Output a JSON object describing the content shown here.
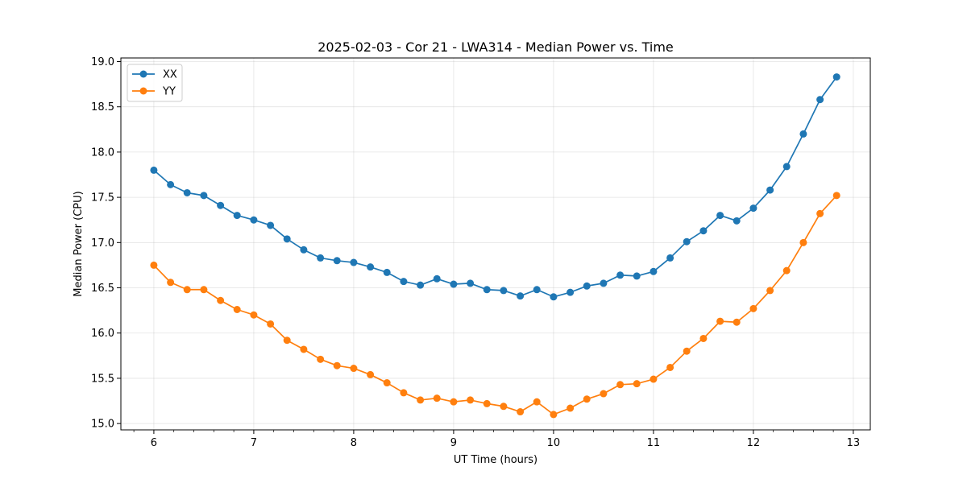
{
  "chart_data": {
    "type": "line",
    "title": "2025-02-03 - Cor 21 - LWA314 - Median Power vs. Time",
    "xlabel": "UT Time (hours)",
    "ylabel": "Median Power (CPU)",
    "xlim": [
      5.67,
      13.17
    ],
    "ylim": [
      14.93,
      19.04
    ],
    "xticks": [
      6,
      7,
      8,
      9,
      10,
      11,
      12,
      13
    ],
    "xtick_labels": [
      "6",
      "7",
      "8",
      "9",
      "10",
      "11",
      "12",
      "13"
    ],
    "yticks": [
      15.0,
      15.5,
      16.0,
      16.5,
      17.0,
      17.5,
      18.0,
      18.5,
      19.0
    ],
    "ytick_labels": [
      "15.0",
      "15.5",
      "16.0",
      "16.5",
      "17.0",
      "17.5",
      "18.0",
      "18.5",
      "19.0"
    ],
    "grid": true,
    "legend_position": "top-left",
    "x": [
      6.0,
      6.167,
      6.333,
      6.5,
      6.667,
      6.833,
      7.0,
      7.167,
      7.333,
      7.5,
      7.667,
      7.833,
      8.0,
      8.167,
      8.333,
      8.5,
      8.667,
      8.833,
      9.0,
      9.167,
      9.333,
      9.5,
      9.667,
      9.833,
      10.0,
      10.167,
      10.333,
      10.5,
      10.667,
      10.833,
      11.0,
      11.167,
      11.333,
      11.5,
      11.667,
      11.833,
      12.0,
      12.167,
      12.333,
      12.5,
      12.667,
      12.833
    ],
    "series": [
      {
        "name": "XX",
        "color": "#1f77b4",
        "values": [
          17.8,
          17.64,
          17.55,
          17.52,
          17.41,
          17.3,
          17.25,
          17.19,
          17.04,
          16.92,
          16.83,
          16.8,
          16.78,
          16.73,
          16.67,
          16.57,
          16.53,
          16.6,
          16.54,
          16.55,
          16.48,
          16.47,
          16.41,
          16.48,
          16.4,
          16.45,
          16.52,
          16.55,
          16.64,
          16.63,
          16.68,
          16.83,
          17.01,
          17.13,
          17.3,
          17.24,
          17.38,
          17.58,
          17.84,
          18.2,
          18.58,
          18.83
        ]
      },
      {
        "name": "YY",
        "color": "#ff7f0e",
        "values": [
          16.75,
          16.56,
          16.48,
          16.48,
          16.36,
          16.26,
          16.2,
          16.1,
          15.92,
          15.82,
          15.71,
          15.64,
          15.61,
          15.54,
          15.45,
          15.34,
          15.26,
          15.28,
          15.24,
          15.26,
          15.22,
          15.19,
          15.13,
          15.24,
          15.1,
          15.17,
          15.27,
          15.33,
          15.43,
          15.44,
          15.49,
          15.62,
          15.8,
          15.94,
          16.13,
          16.12,
          16.27,
          16.47,
          16.69,
          17.0,
          17.32,
          17.52
        ]
      }
    ]
  }
}
